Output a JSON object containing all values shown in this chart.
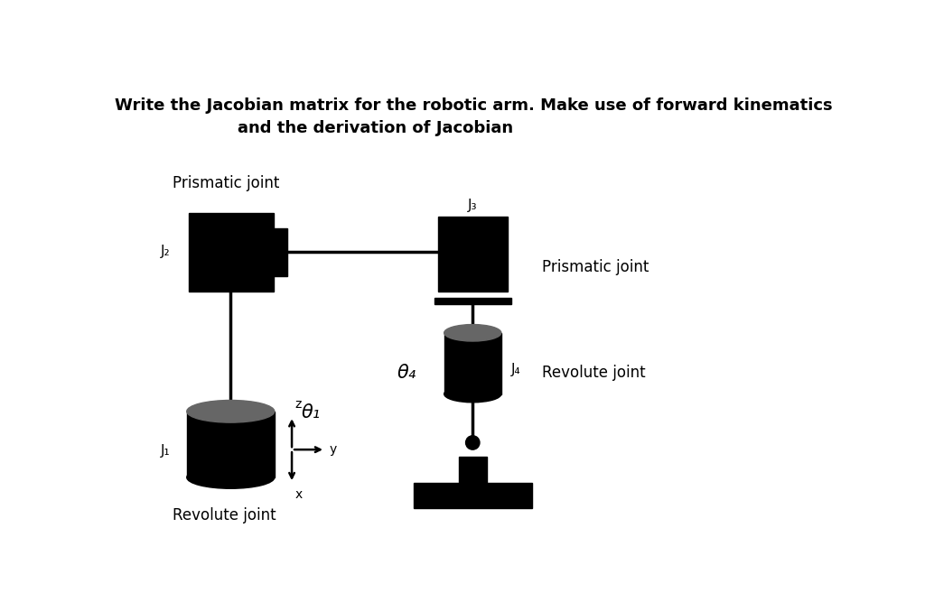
{
  "title_line1": "Write the Jacobian matrix for the robotic arm. Make use of forward kinematics",
  "title_line2": "and the derivation of Jacobian",
  "background_color": "#ffffff",
  "text_color": "#000000",
  "joint_color": "#000000",
  "gray_color": "#666666",
  "label_J1": "J₁",
  "label_J2": "J₂",
  "label_J3": "J₃",
  "label_J4": "J₄",
  "label_theta1": "θ₁",
  "label_theta4": "θ₄",
  "label_prismatic_top": "Prismatic joint",
  "label_prismatic_right": "Prismatic joint",
  "label_revolute_bottom": "Revolute joint",
  "label_revolute_right": "Revolute joint"
}
